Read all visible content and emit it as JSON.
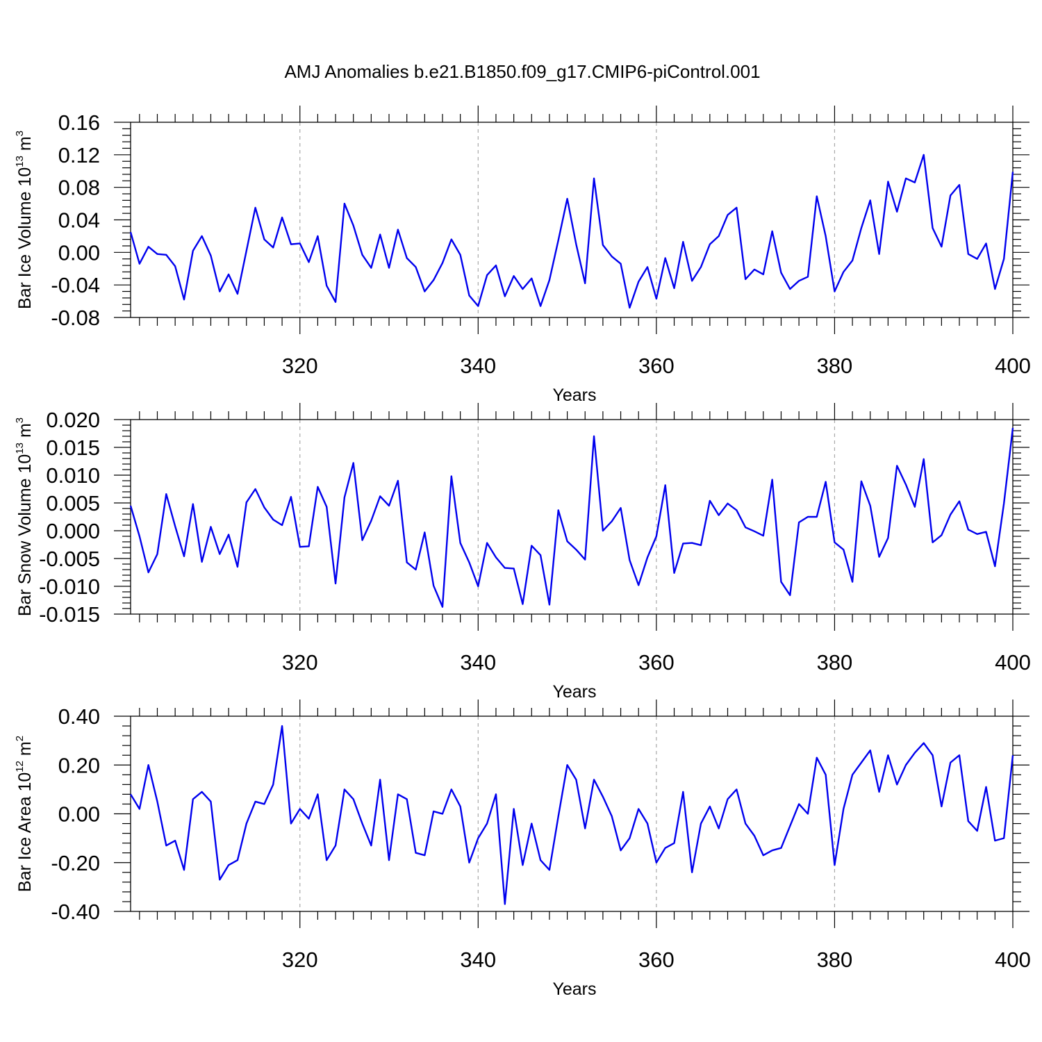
{
  "title": "AMJ Anomalies b.e21.B1850.f09_g17.CMIP6-piControl.001",
  "chart_data": [
    {
      "type": "line",
      "xlabel": "Years",
      "ylabel": {
        "base": "Bar Ice Volume 10",
        "exp": "13",
        "unit": " m",
        "unit_exp": "3"
      },
      "xlim": [
        301,
        400
      ],
      "ylim": [
        -0.08,
        0.16
      ],
      "xticks": [
        320,
        340,
        360,
        380,
        400
      ],
      "xtick_labels": [
        "320",
        "340",
        "360",
        "380",
        "400"
      ],
      "yticks": [
        -0.08,
        -0.04,
        0.0,
        0.04,
        0.08,
        0.12,
        0.16
      ],
      "ytick_labels": [
        "-0.08",
        "-0.04",
        "0.00",
        "0.04",
        "0.08",
        "0.12",
        "0.16"
      ],
      "grid": "x-dashed",
      "color": "#0000ee",
      "x_start": 301,
      "values": [
        0.025,
        -0.014,
        0.007,
        -0.002,
        -0.003,
        -0.017,
        -0.058,
        0.002,
        0.02,
        -0.004,
        -0.048,
        -0.027,
        -0.051,
        0.002,
        0.055,
        0.016,
        0.006,
        0.043,
        0.01,
        0.011,
        -0.012,
        0.02,
        -0.041,
        -0.061,
        0.06,
        0.033,
        -0.003,
        -0.019,
        0.022,
        -0.019,
        0.028,
        -0.007,
        -0.018,
        -0.048,
        -0.034,
        -0.013,
        0.016,
        -0.003,
        -0.053,
        -0.066,
        -0.028,
        -0.016,
        -0.054,
        -0.029,
        -0.045,
        -0.032,
        -0.066,
        -0.034,
        0.015,
        0.066,
        0.01,
        -0.038,
        0.091,
        0.009,
        -0.005,
        -0.014,
        -0.068,
        -0.036,
        -0.018,
        -0.057,
        -0.007,
        -0.044,
        0.013,
        -0.035,
        -0.018,
        0.01,
        0.02,
        0.046,
        0.055,
        -0.033,
        -0.021,
        -0.027,
        0.026,
        -0.025,
        -0.045,
        -0.035,
        -0.03,
        0.069,
        0.02,
        -0.048,
        -0.024,
        -0.01,
        0.03,
        0.064,
        -0.002,
        0.087,
        0.05,
        0.091,
        0.086,
        0.12,
        0.03,
        0.007,
        0.07,
        0.083,
        -0.002,
        -0.008,
        0.011,
        -0.045,
        -0.008,
        0.099
      ]
    },
    {
      "type": "line",
      "xlabel": "Years",
      "ylabel": {
        "base": "Bar Snow Volume 10",
        "exp": "13",
        "unit": " m",
        "unit_exp": "3"
      },
      "xlim": [
        301,
        400
      ],
      "ylim": [
        -0.015,
        0.02
      ],
      "xticks": [
        320,
        340,
        360,
        380,
        400
      ],
      "xtick_labels": [
        "320",
        "340",
        "360",
        "380",
        "400"
      ],
      "yticks": [
        -0.015,
        -0.01,
        -0.005,
        0.0,
        0.005,
        0.01,
        0.015,
        0.02
      ],
      "ytick_labels": [
        "-0.015",
        "-0.010",
        "-0.005",
        "0.000",
        "0.005",
        "0.010",
        "0.015",
        "0.020"
      ],
      "grid": "x-dashed",
      "color": "#0000ee",
      "x_start": 301,
      "values": [
        0.0045,
        -0.001,
        -0.0075,
        -0.0042,
        0.0066,
        0.0008,
        -0.0046,
        0.0048,
        -0.0056,
        0.0007,
        -0.0042,
        -0.0007,
        -0.0065,
        0.0051,
        0.0075,
        0.0042,
        0.002,
        0.001,
        0.0061,
        -0.0029,
        -0.0028,
        0.0079,
        0.0043,
        -0.0095,
        0.006,
        0.0122,
        -0.0017,
        0.0018,
        0.0062,
        0.0045,
        0.009,
        -0.0057,
        -0.007,
        -0.0003,
        -0.0099,
        -0.0137,
        0.0098,
        -0.0022,
        -0.0057,
        -0.01,
        -0.0022,
        -0.0048,
        -0.0067,
        -0.0068,
        -0.0132,
        -0.0027,
        -0.0044,
        -0.0133,
        0.0037,
        -0.0019,
        -0.0034,
        -0.0052,
        0.017,
        0.0,
        0.0017,
        0.0041,
        -0.0053,
        -0.0098,
        -0.0048,
        -0.001,
        0.0082,
        -0.0076,
        -0.0023,
        -0.0022,
        -0.0026,
        0.0054,
        0.0028,
        0.0049,
        0.0037,
        0.0006,
        -0.0001,
        -0.0009,
        0.0092,
        -0.0092,
        -0.0116,
        0.0015,
        0.0025,
        0.0025,
        0.0088,
        -0.0021,
        -0.0034,
        -0.0092,
        0.0089,
        0.0045,
        -0.0047,
        -0.0013,
        0.0117,
        0.0083,
        0.0043,
        0.0129,
        -0.0021,
        -0.0008,
        0.0029,
        0.0053,
        0.0002,
        -0.0006,
        -0.0002,
        -0.0064,
        0.0049,
        0.0185
      ]
    },
    {
      "type": "line",
      "xlabel": "Years",
      "ylabel": {
        "base": "Bar Ice Area 10",
        "exp": "12",
        "unit": " m",
        "unit_exp": "2"
      },
      "xlim": [
        301,
        400
      ],
      "ylim": [
        -0.4,
        0.4
      ],
      "xticks": [
        320,
        340,
        360,
        380,
        400
      ],
      "xtick_labels": [
        "320",
        "340",
        "360",
        "380",
        "400"
      ],
      "yticks": [
        -0.4,
        -0.2,
        0.0,
        0.2,
        0.4
      ],
      "ytick_labels": [
        "-0.40",
        "-0.20",
        "0.00",
        "0.20",
        "0.40"
      ],
      "grid": "x-dashed",
      "color": "#0000ee",
      "x_start": 301,
      "values": [
        0.08,
        0.02,
        0.2,
        0.05,
        -0.13,
        -0.11,
        -0.23,
        0.06,
        0.09,
        0.05,
        -0.27,
        -0.21,
        -0.19,
        -0.04,
        0.05,
        0.04,
        0.12,
        0.36,
        -0.04,
        0.02,
        -0.02,
        0.08,
        -0.19,
        -0.13,
        0.1,
        0.06,
        -0.04,
        -0.13,
        0.14,
        -0.19,
        0.08,
        0.06,
        -0.16,
        -0.17,
        0.01,
        0.0,
        0.1,
        0.03,
        -0.2,
        -0.1,
        -0.04,
        0.08,
        -0.37,
        0.02,
        -0.21,
        -0.04,
        -0.19,
        -0.23,
        -0.01,
        0.2,
        0.14,
        -0.06,
        0.14,
        0.07,
        -0.01,
        -0.15,
        -0.1,
        0.02,
        -0.04,
        -0.2,
        -0.14,
        -0.12,
        0.09,
        -0.24,
        -0.04,
        0.03,
        -0.06,
        0.06,
        0.1,
        -0.04,
        -0.09,
        -0.17,
        -0.15,
        -0.14,
        -0.05,
        0.04,
        0.0,
        0.23,
        0.16,
        -0.21,
        0.02,
        0.16,
        0.21,
        0.26,
        0.09,
        0.24,
        0.12,
        0.2,
        0.25,
        0.29,
        0.24,
        0.03,
        0.21,
        0.24,
        -0.03,
        -0.07,
        0.11,
        -0.11,
        -0.1,
        0.24
      ]
    }
  ]
}
